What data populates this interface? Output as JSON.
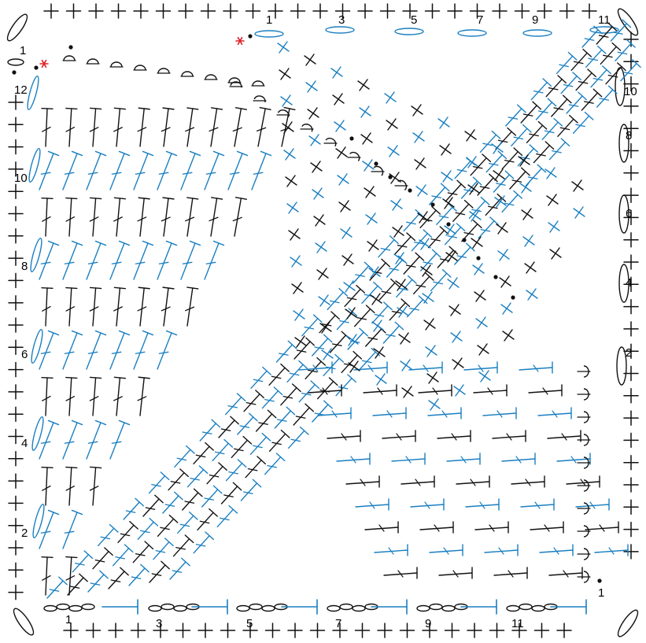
{
  "colors": {
    "black_stitch": "#111111",
    "blue_stitch": "#1a7fc1",
    "start_marker": "#e0202a",
    "background": "#ffffff"
  },
  "row_numbers": {
    "left": [
      "12",
      "10",
      "8",
      "6",
      "4",
      "2"
    ],
    "top_corner": "1",
    "top": [
      "1",
      "3",
      "5",
      "7",
      "9",
      "11"
    ],
    "right": [
      "10",
      "8",
      "6",
      "4",
      "2"
    ],
    "bottom_corner": "1",
    "bottom": [
      "1",
      "3",
      "5",
      "7",
      "9",
      "11"
    ]
  },
  "symbols": [
    "chain-stitch",
    "single-crochet",
    "half-double-crochet",
    "double-crochet",
    "treble-crochet",
    "slip-stitch",
    "start-marker"
  ]
}
